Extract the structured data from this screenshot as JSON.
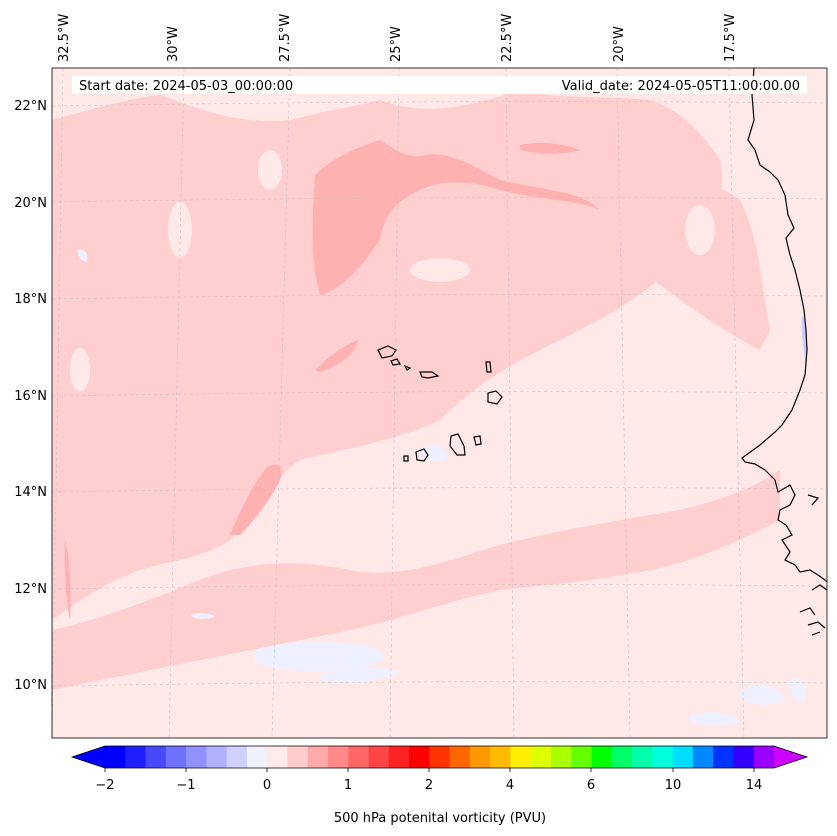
{
  "header": {
    "start_date": "Start date: 2024-05-03_00:00:00",
    "valid_date": "Valid_date: 2024-05-05T11:00:00.00"
  },
  "longitude_labels": [
    "32.5°W",
    "30°W",
    "27.5°W",
    "25°W",
    "22.5°W",
    "20°W",
    "17.5°W"
  ],
  "latitude_labels": [
    "22°N",
    "20°N",
    "18°N",
    "16°N",
    "14°N",
    "12°N",
    "10°N"
  ],
  "colorbar": {
    "label": "500 hPa potenital vorticity (PVU)",
    "tick_labels": [
      "−2",
      "−1",
      "0",
      "1",
      "2",
      "4",
      "6",
      "10",
      "14"
    ],
    "colors": [
      "#0000ff",
      "#2020ff",
      "#4848ff",
      "#7070ff",
      "#9090ff",
      "#b0b0ff",
      "#d0d0ff",
      "#f0f0ff",
      "#ffeaea",
      "#ffcccc",
      "#ffaaaa",
      "#ff8888",
      "#ff6666",
      "#ff4444",
      "#ff2222",
      "#ff0000",
      "#ff3300",
      "#ff6600",
      "#ff9900",
      "#ffbb00",
      "#ffee00",
      "#ddff00",
      "#aaff00",
      "#66ff00",
      "#00ff00",
      "#00ff66",
      "#00ffaa",
      "#00ffdd",
      "#00ddff",
      "#0088ff",
      "#0033ff",
      "#3300ff",
      "#9900ff"
    ],
    "over_color": "#cc00ff",
    "under_color": "#0000ff"
  },
  "field_colors": {
    "background": "#ffe8e8",
    "light_red": "#ffcfcf",
    "medium_red": "#ffb0b0",
    "pale_blue": "#eef0ff",
    "blue_patch": "#c8ccff"
  }
}
